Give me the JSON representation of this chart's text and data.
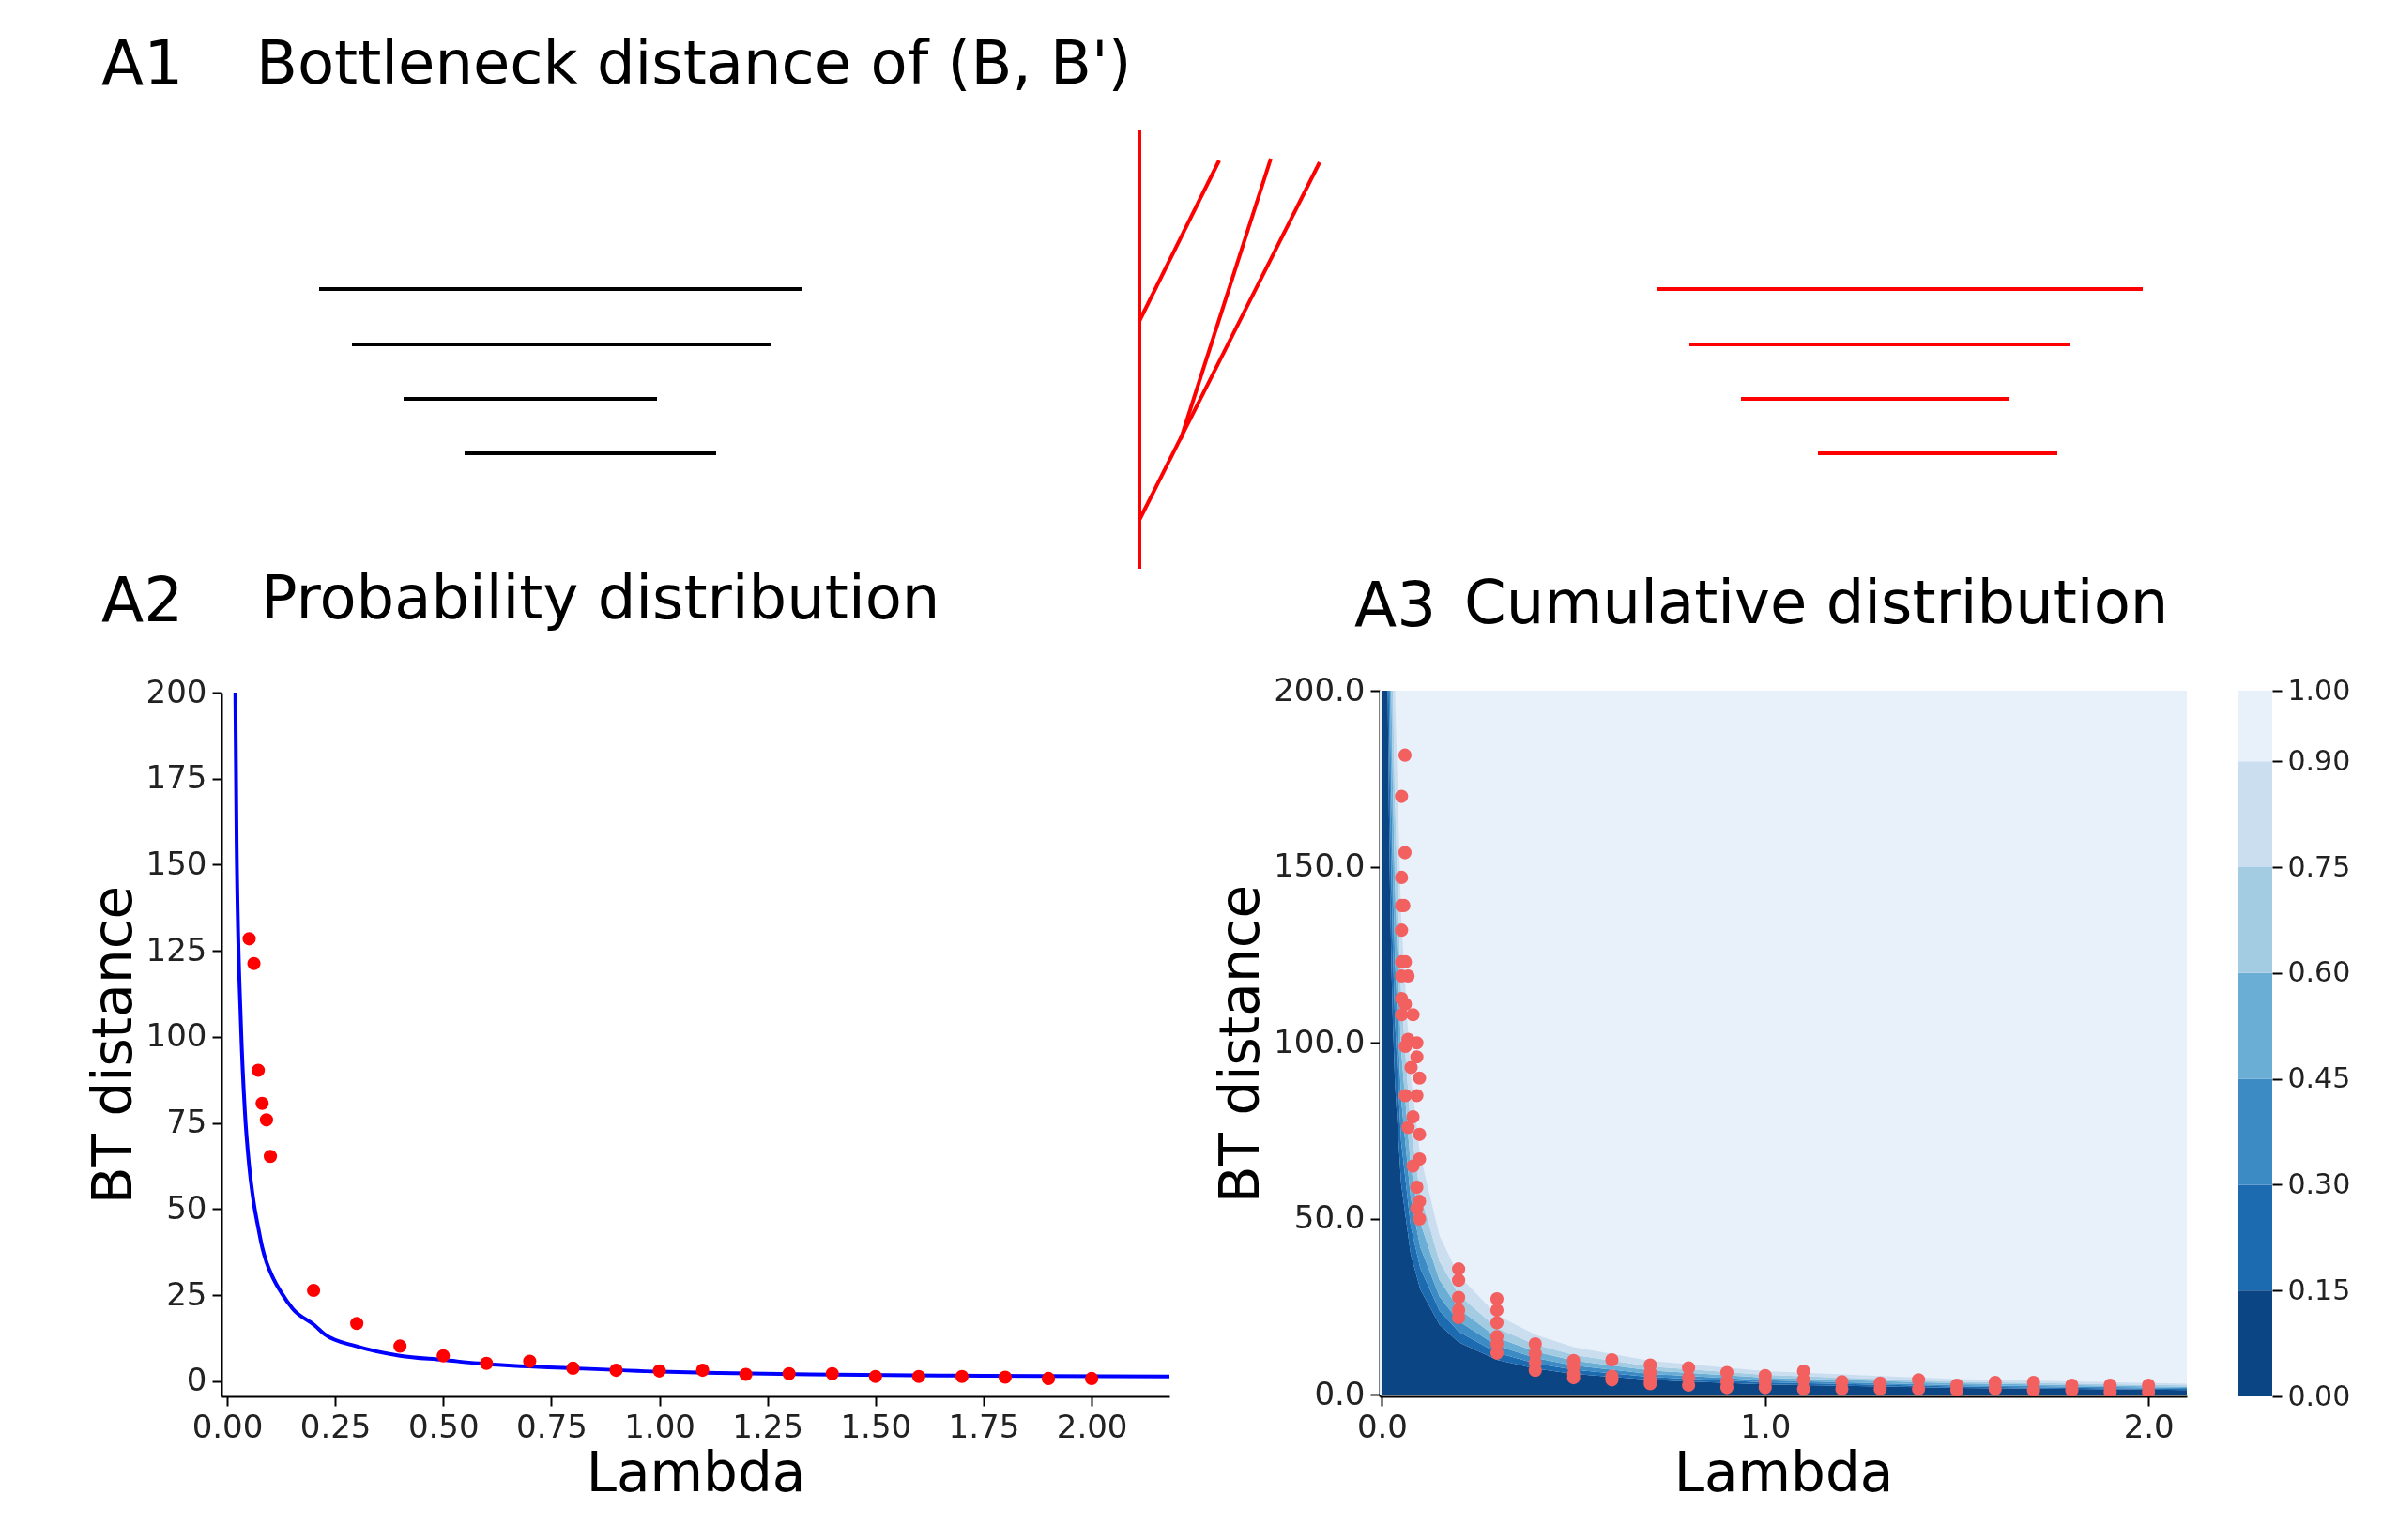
{
  "chart_data": [
    {
      "type": "other",
      "title": "Bottleneck distance of (B, B')",
      "annotations": [
        "A1"
      ]
    },
    {
      "type": "scatter",
      "title": "Probability distribution",
      "annotations": [
        "A2"
      ],
      "xlabel": "Lambda",
      "ylabel": "BT distance",
      "xlim": [
        -0.013,
        2.18
      ],
      "ylim": [
        -4.4,
        200
      ],
      "xticks": [
        {
          "value": 0,
          "label": "0.00"
        },
        {
          "value": 0.25,
          "label": "0.25"
        },
        {
          "value": 0.5,
          "label": "0.50"
        },
        {
          "value": 0.75,
          "label": "0.75"
        },
        {
          "value": 1,
          "label": "1.00"
        },
        {
          "value": 1.25,
          "label": "1.25"
        },
        {
          "value": 1.5,
          "label": "1.50"
        },
        {
          "value": 1.75,
          "label": "1.75"
        },
        {
          "value": 2,
          "label": "2.00"
        }
      ],
      "yticks": [
        0,
        25,
        50,
        75,
        100,
        125,
        150,
        175,
        200
      ],
      "grid": false,
      "series": [
        {
          "type": "line",
          "color": "#0000ff",
          "x": [
            0.019,
            0.022,
            0.032,
            0.041,
            0.051,
            0.062,
            0.072,
            0.081,
            0.091,
            0.104,
            0.126,
            0.152,
            0.203,
            0.226,
            0.298,
            0.4,
            0.5,
            0.6,
            0.8,
            1.0,
            1.14,
            1.35,
            1.75,
            2.18
          ],
          "values": [
            200,
            156,
            103.5,
            78.5,
            62.5,
            51.5,
            44.6,
            39,
            34.6,
            30.6,
            25.6,
            21,
            16.2,
            13.6,
            10.2,
            7.4,
            6.2,
            5,
            3.8,
            2.8,
            2.4,
            2.0,
            1.6,
            1.4
          ]
        },
        {
          "type": "scatter",
          "marker": "circle",
          "color": "#ff0000",
          "x": [
            0.051,
            0.062,
            0.072,
            0.081,
            0.091,
            0.1,
            0.2,
            0.3,
            0.4,
            0.5,
            0.6,
            0.7,
            0.8,
            0.9,
            1.0,
            1.1,
            1.2,
            1.3,
            1.4,
            1.5,
            1.6,
            1.7,
            1.8,
            1.9,
            2.0
          ],
          "values": [
            128.5,
            121.3,
            90.3,
            80.7,
            75.9,
            65.3,
            26.4,
            16.8,
            10.2,
            7.4,
            5.2,
            5.8,
            3.8,
            3.2,
            3.0,
            3.2,
            2.0,
            2.2,
            2.2,
            1.4,
            1.4,
            1.4,
            1.2,
            0.8,
            0.8
          ]
        }
      ]
    },
    {
      "type": "area",
      "title": "Cumulative distribution",
      "annotations": [
        "A3"
      ],
      "xlabel": "Lambda",
      "ylabel": "BT distance",
      "xlim": [
        -0.006,
        2.1
      ],
      "ylim": [
        -0.4,
        200
      ],
      "xticks": [
        {
          "value": 0,
          "label": "0.0"
        },
        {
          "value": 1,
          "label": "1.0"
        },
        {
          "value": 2,
          "label": "2.0"
        }
      ],
      "yticks": [
        {
          "value": 0,
          "label": "0.0"
        },
        {
          "value": 50,
          "label": "50.0"
        },
        {
          "value": 100,
          "label": "100.0"
        },
        {
          "value": 150,
          "label": "150.0"
        },
        {
          "value": 200,
          "label": "200.0"
        }
      ],
      "clim": [
        0,
        1
      ],
      "cticks": [
        {
          "value": 0,
          "label": "0.00"
        },
        {
          "value": 0.15,
          "label": "0.15"
        },
        {
          "value": 0.3,
          "label": "0.30"
        },
        {
          "value": 0.45,
          "label": "0.45"
        },
        {
          "value": 0.6,
          "label": "0.60"
        },
        {
          "value": 0.75,
          "label": "0.75"
        },
        {
          "value": 0.9,
          "label": "0.90"
        },
        {
          "value": 1,
          "label": "1.00"
        }
      ],
      "stacked": true,
      "bands": [
        {
          "axis": "y",
          "from": 0,
          "to": 200,
          "color": "#e8f1fa"
        }
      ],
      "x": [
        0,
        0.015,
        0.018,
        0.021,
        0.0245,
        0.0285,
        0.034,
        0.05,
        0.075,
        0.1,
        0.15,
        0.2,
        0.3,
        0.4,
        0.5,
        0.7,
        1.0,
        1.5,
        2.1
      ],
      "series": [
        {
          "type": "area",
          "color": "#0b4584",
          "values": [
            200,
            200,
            166.7,
            142.9,
            122.4,
            105.3,
            88.2,
            60,
            40,
            30,
            20,
            15,
            10,
            7.5,
            6,
            4.3,
            3,
            2,
            1.4
          ]
        },
        {
          "type": "area",
          "color": "#1c6aaf",
          "values": [
            0,
            0,
            33.3,
            28.5,
            24.5,
            21,
            17.7,
            12,
            8,
            6,
            4,
            3,
            2,
            1.5,
            1.2,
            0.8,
            0.6,
            0.4,
            0.3
          ]
        },
        {
          "type": "area",
          "color": "#3d8bc4",
          "values": [
            0,
            0,
            0,
            28.6,
            24.5,
            21.1,
            17.6,
            12,
            8,
            6,
            4,
            3,
            2,
            1.5,
            1.2,
            0.9,
            0.6,
            0.4,
            0.3
          ]
        },
        {
          "type": "area",
          "color": "#6aaed6",
          "values": [
            0,
            0,
            0,
            0,
            28.6,
            24.5,
            20.6,
            14,
            9.3,
            7,
            4.7,
            3.5,
            2.3,
            1.8,
            1.4,
            1,
            0.7,
            0.5,
            0.3
          ]
        },
        {
          "type": "area",
          "color": "#a3cce3",
          "values": [
            0,
            0,
            0,
            0,
            0,
            28.1,
            23.5,
            16,
            10.7,
            8,
            5.3,
            4,
            2.7,
            2,
            1.6,
            1.1,
            0.8,
            0.5,
            0.4
          ]
        },
        {
          "type": "area",
          "color": "#cadef0",
          "values": [
            0,
            0,
            0,
            0,
            0,
            0,
            32.4,
            22,
            14.7,
            11,
            7.3,
            5.5,
            3.7,
            2.8,
            2.2,
            1.6,
            1.1,
            0.7,
            0.5
          ]
        },
        {
          "type": "scatter",
          "marker": "circle",
          "color": "#f26060",
          "x": [
            0.06,
            0.051,
            0.06,
            0.051,
            0.051,
            0.057,
            0.051,
            0.051,
            0.061,
            0.051,
            0.068,
            0.051,
            0.061,
            0.051,
            0.081,
            0.068,
            0.091,
            0.061,
            0.091,
            0.076,
            0.098,
            0.061,
            0.091,
            0.081,
            0.068,
            0.098,
            0.098,
            0.081,
            0.091,
            0.098,
            0.091,
            0.098,
            0.2,
            0.2,
            0.2,
            0.2,
            0.2,
            0.3,
            0.3,
            0.3,
            0.3,
            0.3,
            0.3,
            0.4,
            0.4,
            0.4,
            0.4,
            0.5,
            0.5,
            0.5,
            0.5,
            0.6,
            0.6,
            0.6,
            0.7,
            0.7,
            0.7,
            0.7,
            0.8,
            0.8,
            0.8,
            0.9,
            0.9,
            0.9,
            1.0,
            1.0,
            1.0,
            1.1,
            1.1,
            1.1,
            1.2,
            1.2,
            1.3,
            1.3,
            1.4,
            1.4,
            1.5,
            1.5,
            1.6,
            1.6,
            1.7,
            1.7,
            1.8,
            1.8,
            1.9,
            1.9,
            2.0,
            2.0
          ],
          "values": [
            181.7,
            170,
            154,
            147,
            139,
            139,
            132,
            123,
            123,
            119,
            119,
            112.6,
            111,
            108,
            108,
            101,
            100,
            99,
            96,
            93,
            90,
            85,
            85,
            79,
            76,
            74,
            67,
            65,
            59,
            55,
            53,
            50,
            35.8,
            32.6,
            27.7,
            24.1,
            22,
            27.3,
            24.1,
            20.5,
            16.6,
            14.5,
            11.9,
            14.5,
            11.7,
            9.2,
            7.0,
            9.8,
            8.1,
            6.0,
            4.9,
            10,
            5.3,
            4.3,
            8.5,
            6.4,
            4.3,
            3.2,
            7.7,
            4.9,
            2.8,
            6.4,
            3.8,
            2.1,
            5.5,
            3.8,
            2.1,
            6.8,
            4.3,
            1.7,
            3.8,
            1.7,
            3.4,
            1.7,
            4.3,
            1.7,
            2.8,
            1.3,
            3.6,
            1.7,
            3.6,
            1.3,
            2.8,
            1.3,
            2.8,
            0.9,
            2.8,
            0.9
          ]
        }
      ]
    }
  ]
}
